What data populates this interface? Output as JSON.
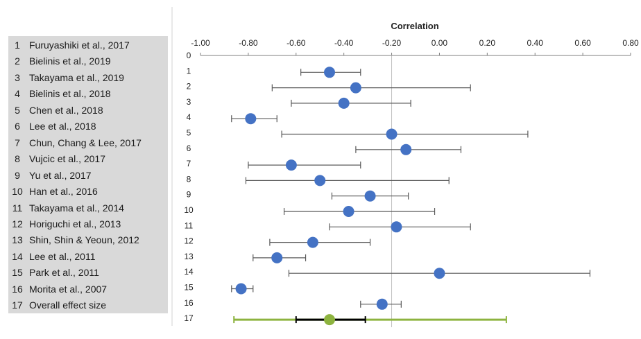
{
  "studies": [
    {
      "num": "1",
      "name": "Furuyashiki et al., 2017"
    },
    {
      "num": "2",
      "name": "Bielinis et al., 2019"
    },
    {
      "num": "3",
      "name": "Takayama et al., 2019"
    },
    {
      "num": "4",
      "name": "Bielinis et al., 2018"
    },
    {
      "num": "5",
      "name": "Chen et al., 2018"
    },
    {
      "num": "6",
      "name": "Lee et al., 2018"
    },
    {
      "num": "7",
      "name": "Chun, Chang & Lee, 2017"
    },
    {
      "num": "8",
      "name": "Vujcic et al., 2017"
    },
    {
      "num": "9",
      "name": "Yu et al., 2017"
    },
    {
      "num": "10",
      "name": "Han et al., 2016"
    },
    {
      "num": "11",
      "name": "Takayama et al., 2014"
    },
    {
      "num": "12",
      "name": "Horiguchi et al., 2013"
    },
    {
      "num": "13",
      "name": "Shin, Shin & Yeoun, 2012"
    },
    {
      "num": "14",
      "name": "Lee et al., 2011"
    },
    {
      "num": "15",
      "name": "Park et al., 2011"
    },
    {
      "num": "16",
      "name": "Morita et al., 2007"
    },
    {
      "num": "17",
      "name": "Overall effect size"
    }
  ],
  "chart_data": {
    "type": "scatter",
    "title": "Correlation",
    "xlim": [
      -1.0,
      0.8
    ],
    "xticks": [
      "-1.00",
      "-0.80",
      "-0.60",
      "-0.40",
      "-0.20",
      "0.00",
      "0.20",
      "0.40",
      "0.60",
      "0.80"
    ],
    "xtick_values": [
      -1.0,
      -0.8,
      -0.6,
      -0.4,
      -0.2,
      0.0,
      0.2,
      0.4,
      0.6,
      0.8
    ],
    "row_labels": [
      "0",
      "1",
      "2",
      "3",
      "4",
      "5",
      "6",
      "7",
      "8",
      "9",
      "10",
      "11",
      "12",
      "13",
      "14",
      "15",
      "16",
      "17"
    ],
    "reference_line": -0.2,
    "points": [
      {
        "row": 1,
        "r": -0.46,
        "lo": -0.58,
        "hi": -0.33
      },
      {
        "row": 2,
        "r": -0.35,
        "lo": -0.7,
        "hi": 0.13
      },
      {
        "row": 3,
        "r": -0.4,
        "lo": -0.62,
        "hi": -0.12
      },
      {
        "row": 4,
        "r": -0.79,
        "lo": -0.87,
        "hi": -0.68
      },
      {
        "row": 5,
        "r": -0.2,
        "lo": -0.66,
        "hi": 0.37
      },
      {
        "row": 6,
        "r": -0.14,
        "lo": -0.35,
        "hi": 0.09
      },
      {
        "row": 7,
        "r": -0.62,
        "lo": -0.8,
        "hi": -0.33
      },
      {
        "row": 8,
        "r": -0.5,
        "lo": -0.81,
        "hi": 0.04
      },
      {
        "row": 9,
        "r": -0.29,
        "lo": -0.45,
        "hi": -0.13
      },
      {
        "row": 10,
        "r": -0.38,
        "lo": -0.65,
        "hi": -0.02
      },
      {
        "row": 11,
        "r": -0.18,
        "lo": -0.46,
        "hi": 0.13
      },
      {
        "row": 12,
        "r": -0.53,
        "lo": -0.71,
        "hi": -0.29
      },
      {
        "row": 13,
        "r": -0.68,
        "lo": -0.78,
        "hi": -0.56
      },
      {
        "row": 14,
        "r": 0.0,
        "lo": -0.63,
        "hi": 0.63
      },
      {
        "row": 15,
        "r": -0.83,
        "lo": -0.87,
        "hi": -0.78
      },
      {
        "row": 16,
        "r": -0.24,
        "lo": -0.33,
        "hi": -0.16
      }
    ],
    "overall": {
      "row": 17,
      "r": -0.46,
      "ci_lo": -0.6,
      "ci_hi": -0.31,
      "pi_lo": -0.86,
      "pi_hi": 0.28
    },
    "colors": {
      "point": "#4472c4",
      "error_bar": "#595959",
      "overall_point": "#8db33f",
      "overall_ci": "#000000",
      "overall_pi": "#8db33f",
      "reference": "#bfbfbf"
    }
  }
}
